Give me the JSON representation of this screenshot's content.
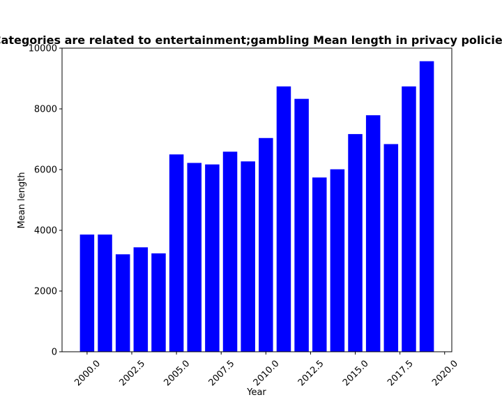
{
  "chart_data": {
    "type": "bar",
    "title": "Categories are related to entertainment;gambling Mean length in privacy policies",
    "xlabel": "Year",
    "ylabel": "Mean length",
    "x": [
      2000,
      2001,
      2002,
      2003,
      2004,
      2005,
      2006,
      2007,
      2008,
      2009,
      2010,
      2011,
      2012,
      2013,
      2014,
      2015,
      2016,
      2017,
      2018,
      2019
    ],
    "values": [
      3860,
      3860,
      3210,
      3440,
      3240,
      6500,
      6220,
      6170,
      6590,
      6270,
      7040,
      8740,
      8330,
      5740,
      6010,
      7170,
      7790,
      6840,
      8740,
      9570
    ],
    "xlim": [
      1998.6,
      2020.4
    ],
    "ylim": [
      0,
      10000
    ],
    "xticks": [
      "2000.0",
      "2002.5",
      "2005.0",
      "2007.5",
      "2010.0",
      "2012.5",
      "2015.0",
      "2017.5",
      "2020.0"
    ],
    "xtick_values": [
      2000,
      2002.5,
      2005,
      2007.5,
      2010,
      2012.5,
      2015,
      2017.5,
      2020
    ],
    "yticks": [
      "0",
      "2000",
      "4000",
      "6000",
      "8000",
      "10000"
    ],
    "ytick_values": [
      0,
      2000,
      4000,
      6000,
      8000,
      10000
    ],
    "bar_color": "#0000ff",
    "grid": false
  }
}
